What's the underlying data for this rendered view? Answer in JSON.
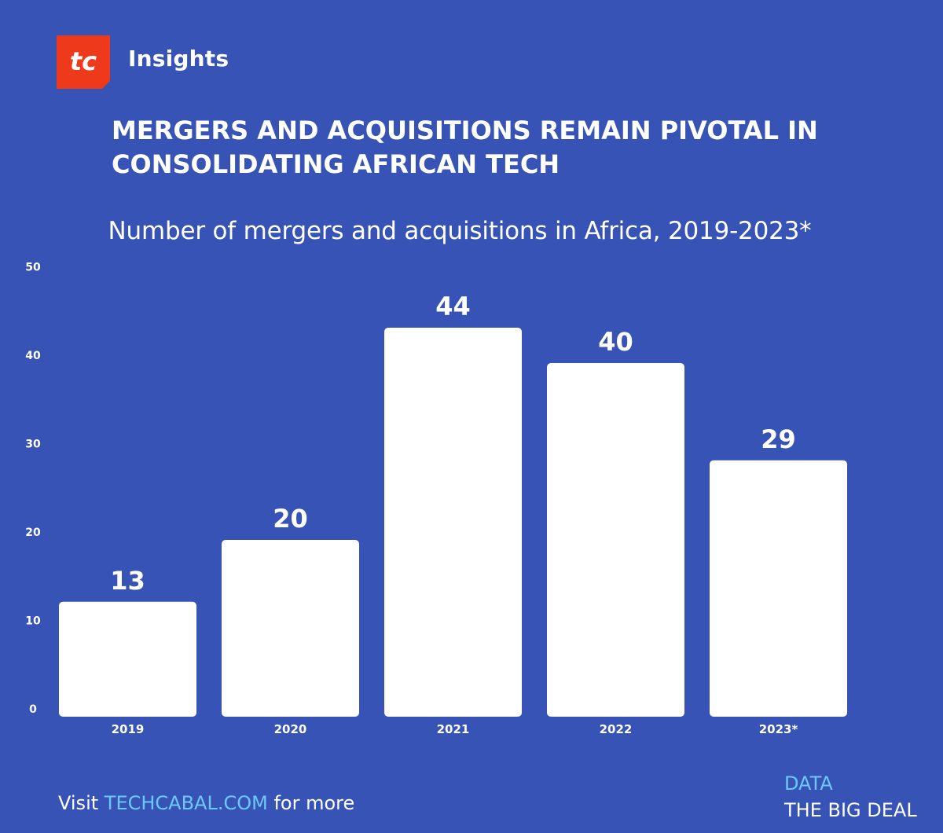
{
  "header": {
    "logo_text": "tc",
    "brand": "Insights",
    "headline": "MERGERS AND ACQUISITIONS REMAIN PIVOTAL IN CONSOLIDATING AFRICAN TECH",
    "subtitle": "Number of mergers and acquisitions in Africa, 2019-2023*"
  },
  "colors": {
    "background": "#3753b5",
    "bars": "#ffffff",
    "logo": "#ee3a1a",
    "link": "#6ec8ff"
  },
  "chart_data": {
    "type": "bar",
    "title": "Number of mergers and acquisitions in Africa, 2019-2023*",
    "xlabel": "",
    "ylabel": "",
    "categories": [
      "2019",
      "2020",
      "2021",
      "2022",
      "2023*"
    ],
    "values": [
      13,
      20,
      44,
      40,
      29
    ],
    "data_labels": [
      "13",
      "20",
      "44",
      "40",
      "29"
    ],
    "yticks": [
      0,
      10,
      20,
      30,
      40,
      50
    ],
    "ylim": [
      0,
      50
    ],
    "grid": false,
    "legend": "none"
  },
  "footer": {
    "visit_prefix": "Visit ",
    "link_text": "TECHCABAL.COM",
    "visit_suffix": " for more",
    "data_label": "DATA",
    "data_source": "THE BIG DEAL"
  }
}
